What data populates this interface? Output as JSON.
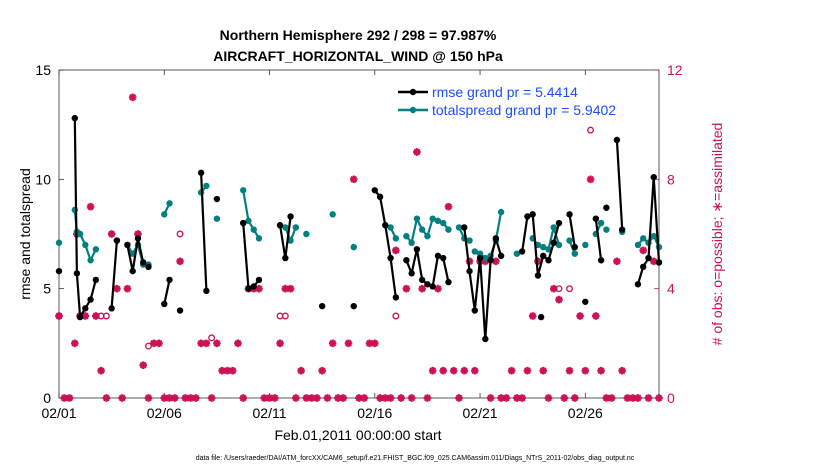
{
  "chart_data": {
    "type": "line",
    "title": "Northern Hemisphere 292 / 298 = 97.987%",
    "subtitle": "AIRCRAFT_HORIZONTAL_WIND @ 150 hPa",
    "xlabel": "Feb.01,2011 00:00:00 start",
    "ylabel": "rmse and totalspread",
    "ylabel_right": "# of obs: o=possible; ∗=assimilated",
    "footer": "data file: /Users/raeder/DAI/ATM_forcXX/CAM6_setup/f.e21.FHIST_BGC.f09_025.CAM6assim.011/Diags_NTrS_2011-02/obs_diag_output.nc",
    "xlim": [
      0,
      28.5
    ],
    "ylim": [
      0,
      15
    ],
    "ylim_right": [
      0,
      12
    ],
    "x_ticks": [
      {
        "v": 0,
        "label": "02/01"
      },
      {
        "v": 5,
        "label": "02/06"
      },
      {
        "v": 10,
        "label": "02/11"
      },
      {
        "v": 15,
        "label": "02/16"
      },
      {
        "v": 20,
        "label": "02/21"
      },
      {
        "v": 25,
        "label": "02/26"
      }
    ],
    "y_ticks": [
      0,
      5,
      10,
      15
    ],
    "y_ticks_right": [
      0,
      4,
      8,
      12
    ],
    "legend_position": "top-right",
    "colors": {
      "rmse": "#000000",
      "spread": "#008080",
      "obs": "#cc1155"
    },
    "series": [
      {
        "name": "rmse grand pr = 5.4414",
        "key": "rmse",
        "segments": [
          [
            [
              0,
              5.8
            ]
          ],
          [
            [
              0.75,
              12.8
            ],
            [
              0.85,
              5.7
            ],
            [
              1.0,
              3.7
            ],
            [
              1.25,
              4.1
            ],
            [
              1.5,
              4.5
            ],
            [
              1.75,
              5.4
            ]
          ],
          [
            [
              2.5,
              4.1
            ],
            [
              2.75,
              7.2
            ]
          ],
          [
            [
              3.25,
              7.0
            ],
            [
              3.5,
              5.8
            ],
            [
              3.75,
              7.3
            ],
            [
              4.0,
              6.2
            ]
          ],
          [
            [
              4.25,
              6.0
            ]
          ],
          [
            [
              5.0,
              4.3
            ],
            [
              5.25,
              5.4
            ]
          ],
          [
            [
              5.75,
              4.0
            ]
          ],
          [
            [
              6.75,
              10.3
            ],
            [
              7.0,
              4.9
            ]
          ],
          [
            [
              7.5,
              9.1
            ]
          ],
          [
            [
              8.75,
              8.0
            ],
            [
              9.0,
              5.0
            ],
            [
              9.25,
              5.1
            ],
            [
              9.5,
              5.4
            ]
          ],
          [
            [
              10.5,
              7.9
            ],
            [
              10.75,
              6.4
            ],
            [
              11.0,
              8.3
            ]
          ],
          [
            [
              12.5,
              4.2
            ]
          ],
          [
            [
              14.0,
              4.2
            ]
          ],
          [
            [
              15.0,
              9.5
            ],
            [
              15.25,
              9.2
            ],
            [
              15.5,
              7.9
            ],
            [
              15.75,
              6.4
            ],
            [
              16.0,
              4.6
            ]
          ],
          [
            [
              16.5,
              6.3
            ],
            [
              16.75,
              5.7
            ],
            [
              17.0,
              6.8
            ],
            [
              17.25,
              5.4
            ],
            [
              17.5,
              5.2
            ],
            [
              17.75,
              5.1
            ],
            [
              18.0,
              6.5
            ],
            [
              18.25,
              6.4
            ],
            [
              18.5,
              5.3
            ]
          ],
          [
            [
              19.25,
              7.8
            ],
            [
              19.5,
              5.8
            ],
            [
              19.75,
              4.0
            ],
            [
              20.0,
              6.4
            ],
            [
              20.25,
              2.7
            ],
            [
              20.5,
              6.3
            ],
            [
              20.75,
              7.3
            ],
            [
              21.0,
              6.5
            ]
          ],
          [
            [
              22.0,
              6.7
            ],
            [
              22.25,
              8.3
            ],
            [
              22.5,
              8.4
            ],
            [
              22.75,
              5.6
            ],
            [
              23.0,
              6.5
            ],
            [
              23.25,
              6.3
            ],
            [
              23.5,
              7.1
            ],
            [
              23.75,
              8.0
            ]
          ],
          [
            [
              22.9,
              3.7
            ]
          ],
          [
            [
              24.25,
              8.4
            ],
            [
              24.5,
              6.9
            ]
          ],
          [
            [
              25.0,
              4.4
            ]
          ],
          [
            [
              25.5,
              8.2
            ],
            [
              25.75,
              6.3
            ]
          ],
          [
            [
              26.0,
              8.7
            ]
          ],
          [
            [
              26.5,
              11.8
            ],
            [
              26.75,
              7.7
            ]
          ],
          [
            [
              27.5,
              5.2
            ],
            [
              27.75,
              6.0
            ],
            [
              28.0,
              6.4
            ],
            [
              28.25,
              10.1
            ],
            [
              28.5,
              6.2
            ]
          ]
        ]
      },
      {
        "name": "totalspread grand pr = 5.9402",
        "key": "spread",
        "segments": [
          [
            [
              0,
              7.1
            ]
          ],
          [
            [
              0.75,
              8.6
            ],
            [
              0.85,
              7.6
            ],
            [
              1.0,
              7.5
            ],
            [
              1.25,
              7.0
            ],
            [
              1.5,
              6.3
            ],
            [
              1.75,
              6.8
            ]
          ],
          [
            [
              2.75,
              7.2
            ]
          ],
          [
            [
              3.25,
              7.0
            ],
            [
              3.5,
              6.6
            ],
            [
              3.75,
              7.0
            ],
            [
              4.0,
              6.1
            ]
          ],
          [
            [
              4.25,
              6.1
            ]
          ],
          [
            [
              5.0,
              8.4
            ],
            [
              5.25,
              8.9
            ]
          ],
          [
            [
              6.75,
              9.4
            ],
            [
              7.0,
              9.7
            ]
          ],
          [
            [
              7.5,
              8.2
            ]
          ],
          [
            [
              8.75,
              9.5
            ],
            [
              9.0,
              8.1
            ],
            [
              9.25,
              7.7
            ],
            [
              9.5,
              7.3
            ]
          ],
          [
            [
              10.5,
              7.9
            ],
            [
              10.75,
              7.8
            ],
            [
              11.0,
              7.2
            ],
            [
              11.25,
              7.8
            ]
          ],
          [
            [
              11.75,
              7.5
            ]
          ],
          [
            [
              13.0,
              8.4
            ]
          ],
          [
            [
              14.0,
              6.9
            ]
          ],
          [
            [
              15.5,
              7.9
            ],
            [
              15.75,
              7.8
            ],
            [
              16.0,
              7.3
            ]
          ],
          [
            [
              16.5,
              7.4
            ],
            [
              16.75,
              7.1
            ],
            [
              17.0,
              8.2
            ],
            [
              17.25,
              7.7
            ],
            [
              17.5,
              7.4
            ],
            [
              17.75,
              8.2
            ]
          ],
          [
            [
              18.0,
              8.1
            ],
            [
              18.25,
              8.0
            ],
            [
              18.5,
              7.7
            ]
          ],
          [
            [
              19.0,
              7.8
            ],
            [
              19.25,
              7.3
            ],
            [
              19.5,
              7.2
            ]
          ],
          [
            [
              19.75,
              6.7
            ],
            [
              20.0,
              6.6
            ],
            [
              20.25,
              6.4
            ],
            [
              20.5,
              6.5
            ],
            [
              20.75,
              7.2
            ],
            [
              21.0,
              8.5
            ]
          ],
          [
            [
              21.75,
              6.6
            ]
          ],
          [
            [
              22.5,
              7.3
            ],
            [
              22.75,
              7.0
            ],
            [
              23.0,
              6.9
            ],
            [
              23.25,
              6.8
            ],
            [
              23.5,
              7.8
            ],
            [
              23.75,
              7.0
            ]
          ],
          [
            [
              24.25,
              7.2
            ],
            [
              24.5,
              6.6
            ]
          ],
          [
            [
              25.0,
              7.0
            ]
          ],
          [
            [
              25.5,
              7.5
            ],
            [
              25.75,
              8.0
            ]
          ],
          [
            [
              26.0,
              7.7
            ]
          ],
          [
            [
              26.75,
              7.6
            ]
          ],
          [
            [
              27.5,
              7.0
            ],
            [
              27.75,
              7.3
            ],
            [
              28.0,
              7.1
            ],
            [
              28.25,
              7.4
            ],
            [
              28.5,
              6.9
            ]
          ]
        ]
      },
      {
        "name": "# obs possible",
        "key": "possible",
        "points": [
          [
            0,
            3
          ],
          [
            1.0,
            3
          ],
          [
            2.0,
            3
          ],
          [
            2.25,
            3
          ],
          [
            4.25,
            1.9
          ],
          [
            5.75,
            6.0
          ],
          [
            7.25,
            2.2
          ],
          [
            10.5,
            3
          ],
          [
            10.75,
            3
          ],
          [
            16.0,
            3
          ],
          [
            23.75,
            4
          ],
          [
            24.25,
            4
          ],
          [
            25.25,
            9.8
          ]
        ]
      },
      {
        "name": "# obs assimilated",
        "key": "assimilated",
        "points": [
          [
            0,
            3
          ],
          [
            0.25,
            0
          ],
          [
            0.5,
            0
          ],
          [
            0.75,
            2
          ],
          [
            0.85,
            6.0
          ],
          [
            1.0,
            3
          ],
          [
            1.25,
            3
          ],
          [
            1.5,
            7.0
          ],
          [
            1.75,
            3
          ],
          [
            2.0,
            1
          ],
          [
            2.25,
            0
          ],
          [
            2.5,
            6.0
          ],
          [
            2.75,
            4
          ],
          [
            3.0,
            0
          ],
          [
            3.25,
            4
          ],
          [
            3.5,
            11
          ],
          [
            3.75,
            6.0
          ],
          [
            4.0,
            1.2
          ],
          [
            4.25,
            0
          ],
          [
            4.5,
            2
          ],
          [
            4.75,
            2
          ],
          [
            5.0,
            0
          ],
          [
            5.25,
            0
          ],
          [
            5.5,
            0
          ],
          [
            5.75,
            5.0
          ],
          [
            6.0,
            0
          ],
          [
            6.25,
            0
          ],
          [
            6.5,
            0
          ],
          [
            6.75,
            2
          ],
          [
            7.0,
            2
          ],
          [
            7.25,
            0
          ],
          [
            7.5,
            2
          ],
          [
            7.75,
            1
          ],
          [
            8.0,
            1
          ],
          [
            8.25,
            1
          ],
          [
            8.5,
            2
          ],
          [
            8.75,
            0
          ],
          [
            9.0,
            4
          ],
          [
            9.25,
            4
          ],
          [
            9.5,
            4
          ],
          [
            9.75,
            0
          ],
          [
            10.0,
            0
          ],
          [
            10.25,
            0
          ],
          [
            10.5,
            2
          ],
          [
            10.75,
            4
          ],
          [
            11.0,
            4
          ],
          [
            11.25,
            0
          ],
          [
            11.5,
            1
          ],
          [
            11.75,
            0
          ],
          [
            12.0,
            0
          ],
          [
            12.25,
            0
          ],
          [
            12.5,
            1
          ],
          [
            12.75,
            0
          ],
          [
            13.0,
            2
          ],
          [
            13.25,
            0
          ],
          [
            13.5,
            0
          ],
          [
            13.75,
            2
          ],
          [
            14.0,
            8
          ],
          [
            14.25,
            0
          ],
          [
            14.5,
            0
          ],
          [
            14.75,
            2
          ],
          [
            15.0,
            2
          ],
          [
            15.25,
            0
          ],
          [
            15.5,
            0
          ],
          [
            15.75,
            0
          ],
          [
            16.0,
            5.4
          ],
          [
            16.25,
            0
          ],
          [
            16.5,
            4
          ],
          [
            16.75,
            0
          ],
          [
            17.0,
            9.0
          ],
          [
            17.25,
            4
          ],
          [
            17.5,
            0
          ],
          [
            17.75,
            1
          ],
          [
            18.0,
            4
          ],
          [
            18.25,
            1
          ],
          [
            18.5,
            7.0
          ],
          [
            18.75,
            1
          ],
          [
            19.0,
            0
          ],
          [
            19.25,
            1
          ],
          [
            19.5,
            5
          ],
          [
            19.75,
            1
          ],
          [
            20.0,
            5
          ],
          [
            20.25,
            5
          ],
          [
            20.5,
            0
          ],
          [
            20.75,
            5
          ],
          [
            21.0,
            0
          ],
          [
            21.25,
            0
          ],
          [
            21.5,
            1
          ],
          [
            21.75,
            0
          ],
          [
            22.0,
            0
          ],
          [
            22.25,
            1
          ],
          [
            22.5,
            3
          ],
          [
            22.75,
            5
          ],
          [
            23.0,
            1
          ],
          [
            23.25,
            0
          ],
          [
            23.5,
            4
          ],
          [
            23.75,
            3.6
          ],
          [
            24.0,
            0
          ],
          [
            24.25,
            1
          ],
          [
            24.5,
            0
          ],
          [
            24.75,
            3
          ],
          [
            25.0,
            1
          ],
          [
            25.25,
            8
          ],
          [
            25.5,
            3
          ],
          [
            25.75,
            1
          ],
          [
            26.0,
            0
          ],
          [
            26.25,
            0
          ],
          [
            26.5,
            5
          ],
          [
            26.75,
            1
          ],
          [
            27.0,
            0
          ],
          [
            27.25,
            0
          ],
          [
            27.5,
            0
          ],
          [
            27.75,
            5.4
          ],
          [
            28.0,
            0
          ],
          [
            28.25,
            5
          ],
          [
            28.5,
            0
          ]
        ]
      }
    ]
  }
}
